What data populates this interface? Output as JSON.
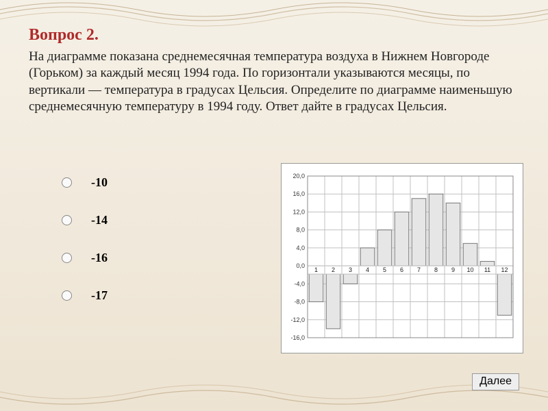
{
  "question": {
    "title": "Вопрос 2.",
    "text": "На диаграмме показана среднемесячная температура воздуха в Нижнем Новгороде (Горьком) за каждый месяц 1994 года. По горизонтали указываются месяцы, по вертикали — температура в градусах Цельсия. Определите по диаграмме наименьшую среднемесячную температуру в 1994 году. Ответ дайте в градусах Цельсия."
  },
  "options": [
    "-10",
    "-14",
    "-16",
    "-17"
  ],
  "chart": {
    "type": "bar",
    "months": [
      "1",
      "2",
      "3",
      "4",
      "5",
      "6",
      "7",
      "8",
      "9",
      "10",
      "11",
      "12"
    ],
    "values": [
      -8,
      -14,
      -4,
      4,
      8,
      12,
      15,
      16,
      14,
      5,
      1,
      -11
    ],
    "y_ticks": [
      20,
      16,
      12,
      8,
      4,
      0,
      -4,
      -8,
      -12,
      -16
    ],
    "y_tick_labels": [
      "20,0",
      "16,0",
      "12,0",
      "8,0",
      "4,0",
      "0,0",
      "-4,0",
      "-8,0",
      "-12,0",
      "-16,0"
    ],
    "ylim": [
      -16,
      20
    ],
    "grid_color": "#c0c0c0",
    "bar_fill": "#e6e6e6",
    "bar_stroke": "#777777",
    "background": "#ffffff",
    "bar_width_ratio": 0.82,
    "title_fontsize": 9
  },
  "buttons": {
    "next": "Далее"
  },
  "colors": {
    "title": "#b02a2a",
    "text": "#222222"
  }
}
